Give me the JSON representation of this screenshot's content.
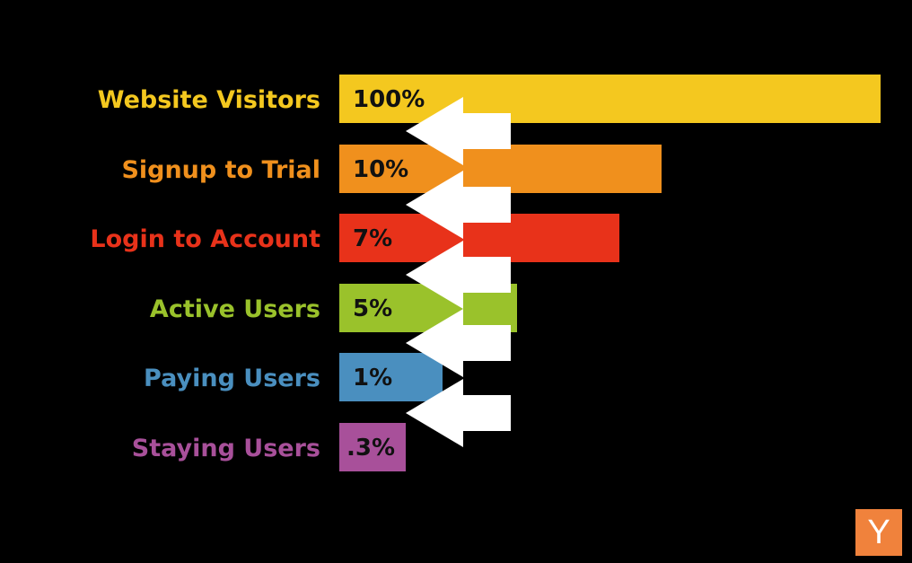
{
  "chart_data": {
    "type": "bar",
    "orientation": "horizontal",
    "categories": [
      "Website Visitors",
      "Signup to Trial",
      "Login to Account",
      "Active Users",
      "Paying Users",
      "Staying Users"
    ],
    "value_labels": [
      "100%",
      "10%",
      "7%",
      "5%",
      "1%",
      ".3%"
    ],
    "colors": [
      "#f4c81f",
      "#f0901d",
      "#e8321a",
      "#9ac22b",
      "#4a8fbf",
      "#a8509a"
    ],
    "grid": false,
    "legend": "none",
    "arrow_color": "#ffffff",
    "background": "#000000"
  },
  "logo": {
    "text": "Y",
    "color": "#f0823c"
  }
}
